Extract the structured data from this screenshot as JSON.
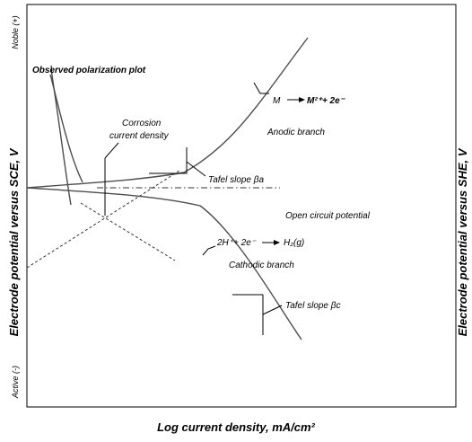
{
  "axes": {
    "x_title": "Log current density, mA/cm²",
    "y_left_title": "Electrode potential versus SCE, V",
    "y_right_title": "Electrode potential versus SHE, V",
    "y_top": "Noble (+)",
    "y_bottom": "Active (-)"
  },
  "labels": {
    "observed": "Observed polarization plot",
    "corrosion_line1": "Corrosion",
    "corrosion_line2": "current density",
    "anodic_branch": "Anodic branch",
    "tafel_a": "Tafel slope βa",
    "ocp": "Open circuit potential",
    "cathodic_reaction": "2H⁺+ 2e⁻",
    "cathodic_product": "H₂(g)",
    "cathodic_branch": "Cathodic branch",
    "tafel_c": "Tafel slope  βc"
  },
  "anodic_reaction": {
    "reactant": "M",
    "product": "M²⁺+ 2e⁻"
  }
}
